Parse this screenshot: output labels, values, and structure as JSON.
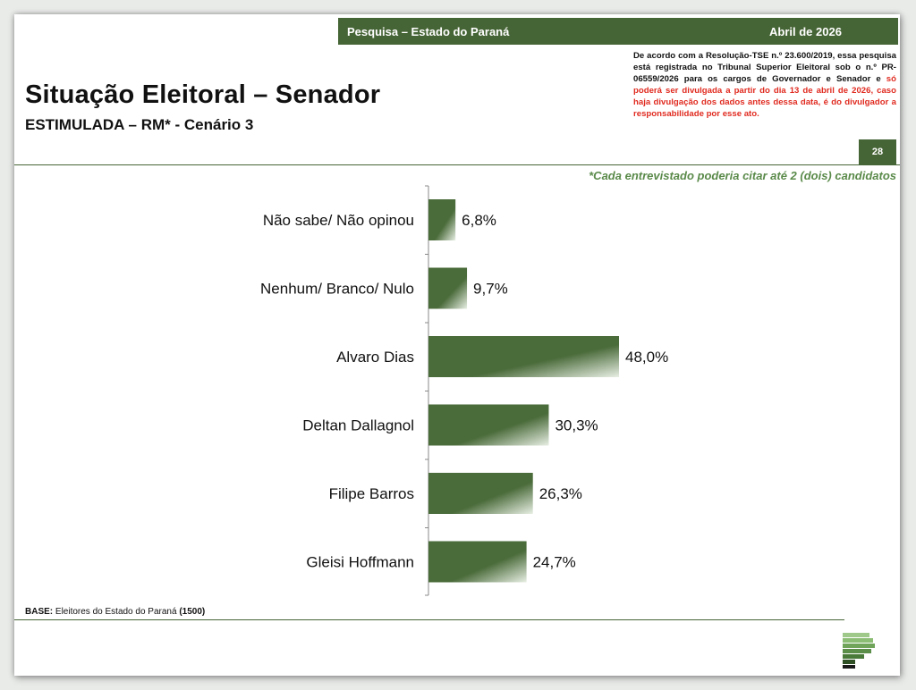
{
  "header": {
    "survey": "Pesquisa – Estado do Paraná",
    "date": "Abril de 2026"
  },
  "title": "Situação Eleitoral – Senador",
  "subtitle": "ESTIMULADA – RM* - Cenário 3",
  "notice": {
    "text": "De acordo com a Resolução-TSE n.º 23.600/2019, essa pesquisa está registrada no Tribunal Superior Eleitoral sob o n.º PR-06559/2026 para os cargos de Governador e Senador e ",
    "highlight": "só poderá ser divulgada a partir do dia 13 de abril de 2026, caso haja divulgação dos dados antes dessa data, é do divulgador a responsabilidade por esse ato."
  },
  "page_number": "28",
  "footnote": "*Cada entrevistado poderia citar até 2 (dois) candidatos",
  "base": {
    "label": "BASE:",
    "text": " Eleitores do Estado do Paraná ",
    "count": "(1500)"
  },
  "colors": {
    "brand_green": "#466536",
    "bar_dark": "#4a6b3a",
    "bar_light": "#e8efe4",
    "notice_red": "#e02b20",
    "footnote_green": "#5a8a4a"
  },
  "chart_data": {
    "type": "bar",
    "orientation": "horizontal",
    "categories": [
      "Não sabe/ Não opinou",
      "Nenhum/ Branco/ Nulo",
      "Alvaro Dias",
      "Deltan Dallagnol",
      "Filipe Barros",
      "Gleisi Hoffmann"
    ],
    "values": [
      6.8,
      9.7,
      48.0,
      30.3,
      26.3,
      24.7
    ],
    "labels": [
      "6,8%",
      "9,7%",
      "48,0%",
      "30,3%",
      "26,3%",
      "24,7%"
    ],
    "unit": "%",
    "xlim": [
      0,
      50
    ],
    "grid": false,
    "legend": "none"
  }
}
